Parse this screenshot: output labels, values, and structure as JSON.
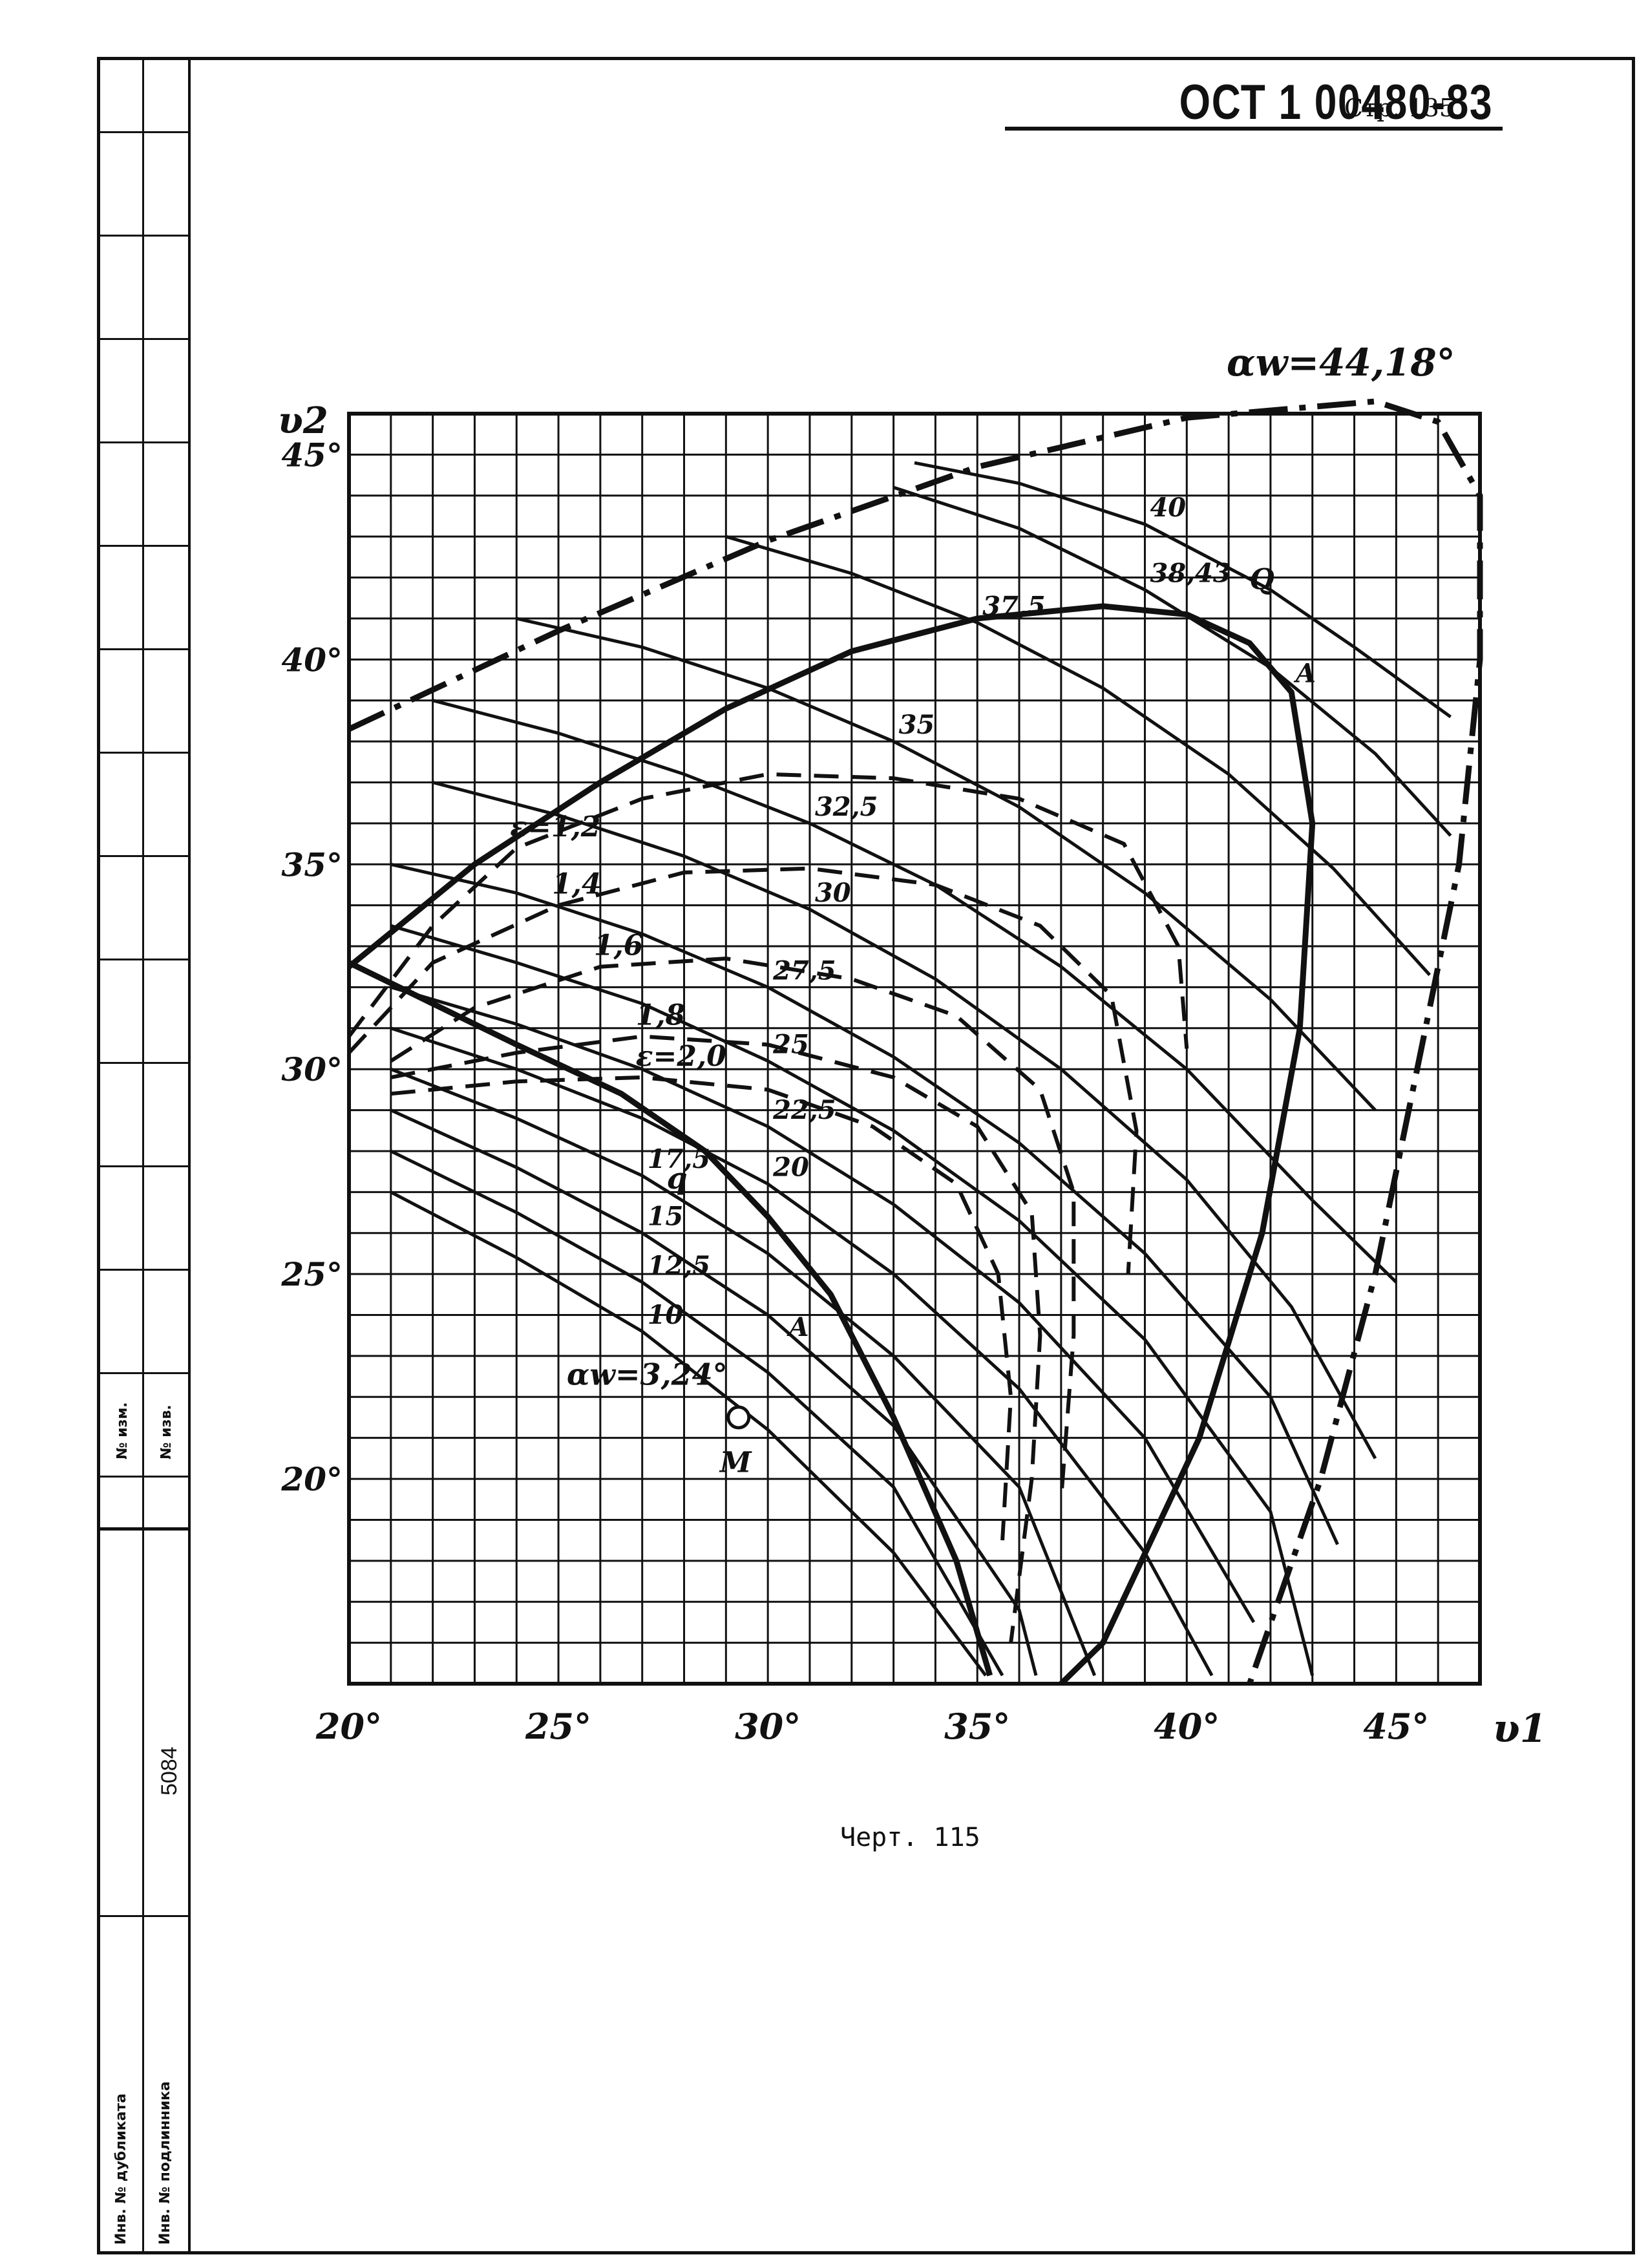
{
  "header": {
    "document_code": "ОСТ 1 00480-83",
    "page_label": "Стр. 135"
  },
  "side_table": {
    "izm_no": "№ изм.",
    "izv_no": "№ изв.",
    "inv_original": "5084",
    "inv_duplicate": "Инв. № дубликата",
    "inv_original_label": "Инв. № подлинника"
  },
  "caption": "Черт. 115",
  "chart_data": {
    "type": "line",
    "xlabel": "υ1",
    "ylabel": "υ2",
    "xlim": [
      20,
      47
    ],
    "ylim": [
      15,
      46
    ],
    "x_ticks": [
      "20°",
      "25°",
      "30°",
      "35°",
      "40°",
      "45°"
    ],
    "y_ticks": [
      "20°",
      "25°",
      "30°",
      "35°",
      "40°",
      "45°"
    ],
    "x_tick_values": [
      20,
      25,
      30,
      35,
      40,
      45
    ],
    "y_tick_values": [
      20,
      25,
      30,
      35,
      40,
      45
    ],
    "grid": true,
    "alpha_series": [
      {
        "label": "10",
        "points": [
          [
            21,
            27
          ],
          [
            24,
            25.4
          ],
          [
            27,
            23.6
          ],
          [
            30,
            21.2
          ],
          [
            33,
            18.2
          ],
          [
            35.2,
            15.2
          ]
        ]
      },
      {
        "label": "12,5",
        "points": [
          [
            21,
            28
          ],
          [
            24,
            26.5
          ],
          [
            27,
            24.8
          ],
          [
            30,
            22.6
          ],
          [
            33,
            19.8
          ],
          [
            35.6,
            15.2
          ]
        ]
      },
      {
        "label": "15",
        "points": [
          [
            21,
            29
          ],
          [
            24,
            27.6
          ],
          [
            27,
            26
          ],
          [
            30,
            24
          ],
          [
            33,
            21.3
          ],
          [
            36,
            16.8
          ],
          [
            36.4,
            15.2
          ]
        ]
      },
      {
        "label": "17,5",
        "points": [
          [
            21,
            30
          ],
          [
            24,
            28.8
          ],
          [
            27,
            27.4
          ],
          [
            30,
            25.5
          ],
          [
            33,
            23
          ],
          [
            36,
            19.8
          ],
          [
            37.8,
            15.2
          ]
        ]
      },
      {
        "label": "20",
        "points": [
          [
            21,
            31
          ],
          [
            24,
            30
          ],
          [
            27,
            28.8
          ],
          [
            30,
            27.2
          ],
          [
            33,
            25
          ],
          [
            36,
            22.2
          ],
          [
            39,
            18.2
          ],
          [
            40.6,
            15.2
          ]
        ]
      },
      {
        "label": "22,5",
        "points": [
          [
            21,
            32
          ],
          [
            24,
            31.1
          ],
          [
            27,
            30
          ],
          [
            30,
            28.6
          ],
          [
            33,
            26.7
          ],
          [
            36,
            24.3
          ],
          [
            39,
            21
          ],
          [
            41.6,
            16.5
          ]
        ]
      },
      {
        "label": "25",
        "points": [
          [
            21,
            33.5
          ],
          [
            24,
            32.6
          ],
          [
            27,
            31.6
          ],
          [
            30,
            30.2
          ],
          [
            33,
            28.5
          ],
          [
            36,
            26.3
          ],
          [
            39,
            23.4
          ],
          [
            42,
            19.2
          ],
          [
            43,
            15.2
          ]
        ]
      },
      {
        "label": "27,5",
        "points": [
          [
            21,
            35
          ],
          [
            24,
            34.3
          ],
          [
            27,
            33.3
          ],
          [
            30,
            32
          ],
          [
            33,
            30.3
          ],
          [
            36,
            28.2
          ],
          [
            39,
            25.5
          ],
          [
            42,
            22
          ],
          [
            43.6,
            18.4
          ]
        ]
      },
      {
        "label": "30",
        "points": [
          [
            22,
            37
          ],
          [
            25,
            36.2
          ],
          [
            28,
            35.2
          ],
          [
            31,
            33.9
          ],
          [
            34,
            32.2
          ],
          [
            37,
            30
          ],
          [
            40,
            27.3
          ],
          [
            42.5,
            24.2
          ],
          [
            44.5,
            20.5
          ]
        ]
      },
      {
        "label": "32,5",
        "points": [
          [
            22,
            39
          ],
          [
            25,
            38.2
          ],
          [
            28,
            37.2
          ],
          [
            31,
            36
          ],
          [
            34,
            34.5
          ],
          [
            37,
            32.5
          ],
          [
            40,
            30
          ],
          [
            43,
            26.8
          ],
          [
            45,
            24.8
          ]
        ]
      },
      {
        "label": "35",
        "points": [
          [
            24,
            41
          ],
          [
            27,
            40.3
          ],
          [
            30,
            39.3
          ],
          [
            33,
            38
          ],
          [
            36,
            36.4
          ],
          [
            39,
            34.3
          ],
          [
            42,
            31.7
          ],
          [
            44.5,
            29
          ]
        ]
      },
      {
        "label": "37,5",
        "points": [
          [
            29,
            43
          ],
          [
            32,
            42.1
          ],
          [
            35,
            40.9
          ],
          [
            38,
            39.3
          ],
          [
            41,
            37.2
          ],
          [
            43.5,
            34.9
          ],
          [
            45.8,
            32.3
          ]
        ]
      },
      {
        "label": "38,43",
        "points": [
          [
            33,
            44.2
          ],
          [
            36,
            43.2
          ],
          [
            39,
            41.7
          ],
          [
            42,
            39.8
          ],
          [
            44.5,
            37.7
          ],
          [
            46.3,
            35.7
          ]
        ]
      },
      {
        "label": "40",
        "points": [
          [
            33.5,
            44.8
          ],
          [
            36,
            44.3
          ],
          [
            39,
            43.3
          ],
          [
            42,
            41.7
          ],
          [
            44,
            40.3
          ],
          [
            46.3,
            38.6
          ]
        ]
      }
    ],
    "epsilon_series": [
      {
        "label": "ε=1,2",
        "points": [
          [
            20,
            30.8
          ],
          [
            22,
            33.5
          ],
          [
            24,
            35.4
          ],
          [
            27,
            36.6
          ],
          [
            30,
            37.2
          ],
          [
            33,
            37.1
          ],
          [
            36,
            36.6
          ],
          [
            38.5,
            35.5
          ],
          [
            39.8,
            33
          ],
          [
            40,
            30.5
          ]
        ]
      },
      {
        "label": "1,4",
        "points": [
          [
            20,
            30.4
          ],
          [
            22,
            32.6
          ],
          [
            25,
            34
          ],
          [
            28,
            34.8
          ],
          [
            31,
            34.9
          ],
          [
            34,
            34.5
          ],
          [
            36.5,
            33.5
          ],
          [
            38.2,
            31.8
          ],
          [
            38.8,
            28.5
          ],
          [
            38.6,
            25
          ]
        ]
      },
      {
        "label": "1,6",
        "points": [
          [
            21,
            30.2
          ],
          [
            23,
            31.5
          ],
          [
            26,
            32.5
          ],
          [
            29,
            32.7
          ],
          [
            32,
            32.2
          ],
          [
            34.5,
            31.3
          ],
          [
            36.5,
            29.5
          ],
          [
            37.3,
            27
          ],
          [
            37.3,
            23.5
          ],
          [
            37,
            19.5
          ]
        ]
      },
      {
        "label": "1,8",
        "points": [
          [
            21,
            29.8
          ],
          [
            24,
            30.4
          ],
          [
            27,
            30.8
          ],
          [
            30,
            30.6
          ],
          [
            33,
            29.8
          ],
          [
            35,
            28.6
          ],
          [
            36.3,
            26.5
          ],
          [
            36.5,
            23.5
          ],
          [
            36.3,
            20
          ],
          [
            35.8,
            16
          ]
        ]
      },
      {
        "label": "ε=2,0",
        "points": [
          [
            21,
            29.4
          ],
          [
            24,
            29.7
          ],
          [
            27,
            29.8
          ],
          [
            30,
            29.5
          ],
          [
            32.5,
            28.6
          ],
          [
            34.5,
            27.2
          ],
          [
            35.5,
            25
          ],
          [
            35.8,
            22
          ],
          [
            35.6,
            18.5
          ]
        ]
      }
    ],
    "boundary_curves": [
      {
        "label": "αw=44,18°",
        "style": "dash-dot",
        "points": [
          [
            20,
            38.3
          ],
          [
            25,
            40.7
          ],
          [
            30,
            42.9
          ],
          [
            35,
            44.7
          ],
          [
            40,
            45.9
          ],
          [
            44.5,
            46.3
          ],
          [
            46,
            45.8
          ],
          [
            47,
            44
          ],
          [
            47,
            40
          ],
          [
            46.5,
            35
          ],
          [
            45.5,
            30
          ],
          [
            44.5,
            25
          ],
          [
            43.2,
            20
          ],
          [
            41.5,
            15
          ]
        ]
      },
      {
        "label": "Q",
        "style": "solid",
        "points": [
          [
            20,
            32.5
          ],
          [
            23,
            35
          ],
          [
            26,
            37
          ],
          [
            29,
            38.8
          ],
          [
            32,
            40.2
          ],
          [
            35,
            41
          ],
          [
            38,
            41.3
          ],
          [
            40,
            41.1
          ],
          [
            41.5,
            40.4
          ],
          [
            42.5,
            39.2
          ],
          [
            43,
            36
          ],
          [
            42.7,
            31
          ],
          [
            41.8,
            26
          ],
          [
            40.3,
            21
          ],
          [
            38,
            16
          ],
          [
            37,
            15
          ]
        ]
      },
      {
        "label": "q",
        "style": "solid",
        "points": [
          [
            20,
            32.6
          ],
          [
            22,
            31.6
          ],
          [
            24,
            30.6
          ],
          [
            26.5,
            29.4
          ],
          [
            28.5,
            28
          ],
          [
            30,
            26.4
          ],
          [
            31.5,
            24.5
          ],
          [
            33,
            21.5
          ],
          [
            34.5,
            18
          ],
          [
            35.3,
            15.2
          ]
        ]
      }
    ],
    "point_labels": [
      "Q",
      "A",
      "q",
      "A",
      "M"
    ],
    "lower_alpha_label": "αw=3,24°"
  }
}
